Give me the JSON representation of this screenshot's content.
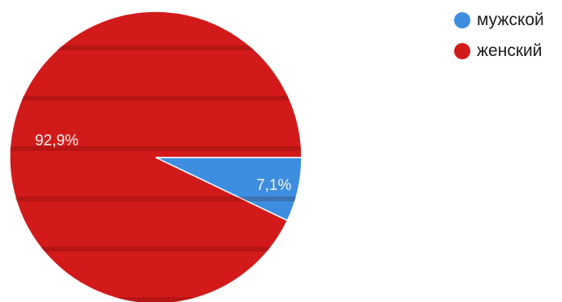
{
  "chart_data": {
    "type": "pie",
    "title": "",
    "slices": [
      {
        "label": "мужской",
        "value": 7.1,
        "value_label": "7,1%",
        "color": "#3d8ee0"
      },
      {
        "label": "женский",
        "value": 92.9,
        "value_label": "92,9%",
        "color": "#d31a1a"
      }
    ],
    "legend_position": "top-right",
    "start_angle_deg": 0,
    "direction": "clockwise"
  }
}
